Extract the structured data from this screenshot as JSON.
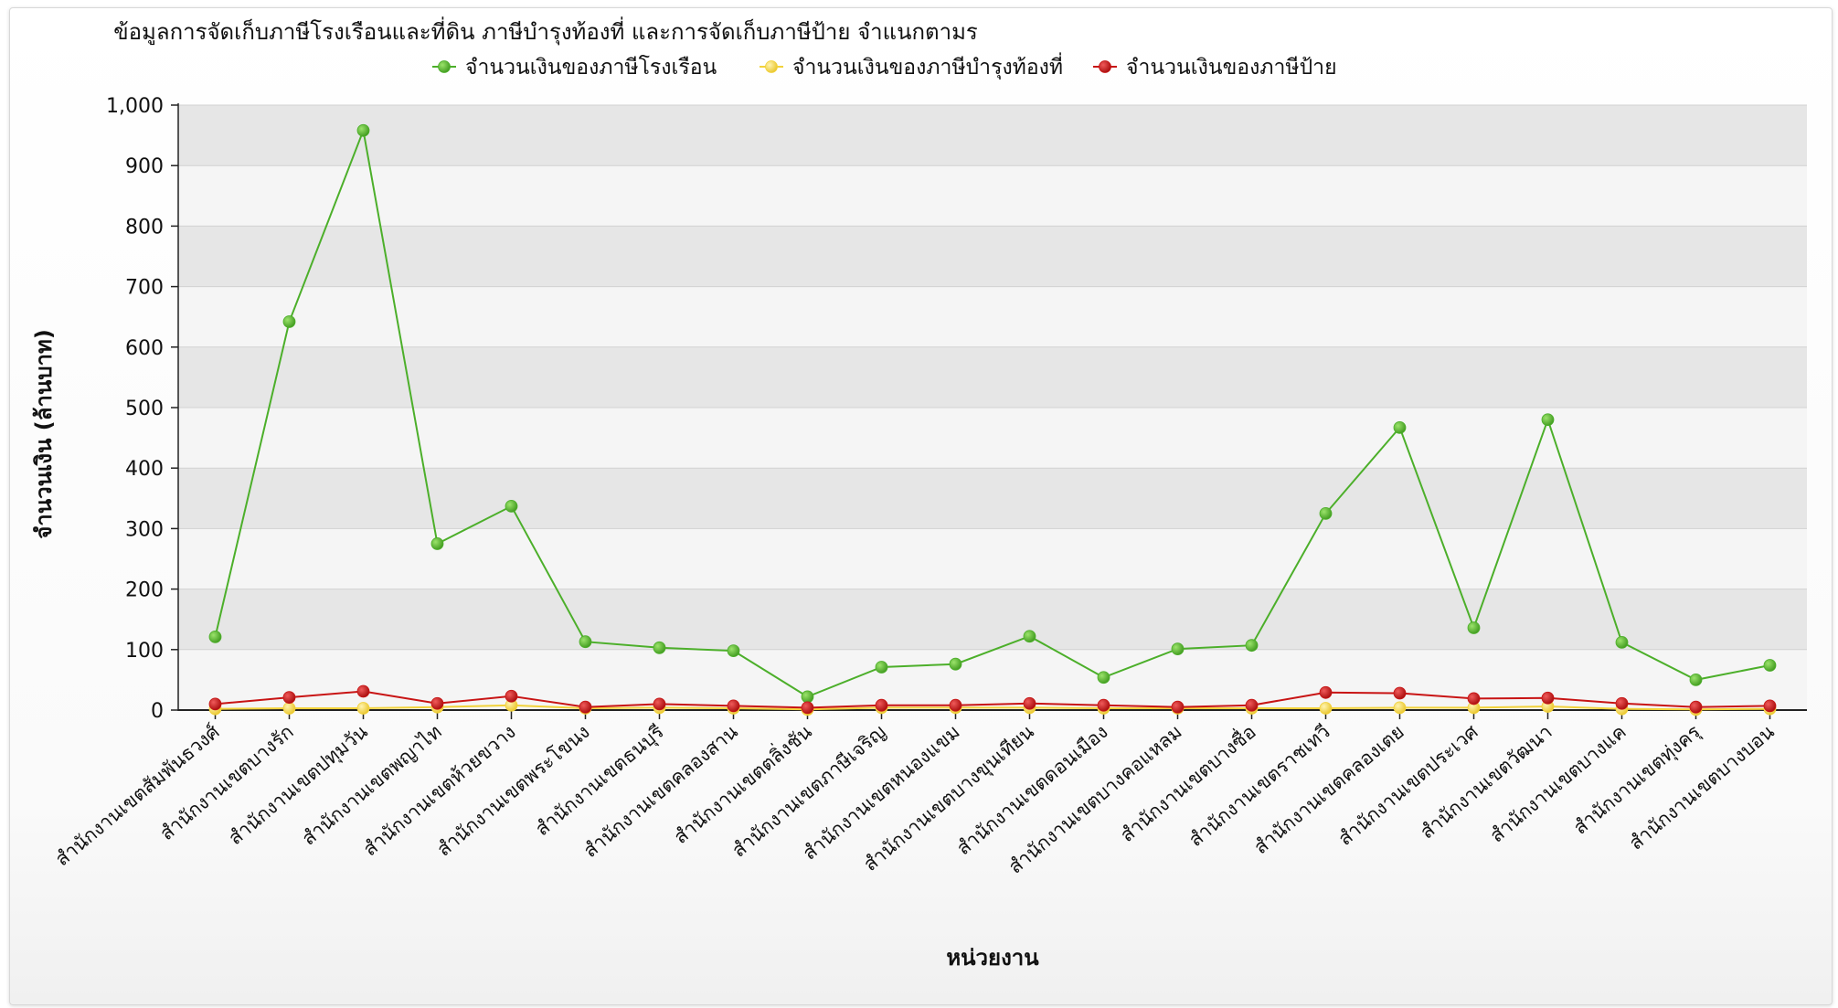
{
  "chart_data": {
    "type": "line",
    "title": "ข้อมูลการจัดเก็บภาษีโรงเรือนและที่ดิน ภาษีบำรุงท้องที่  และการจัดเก็บภาษีป้าย จำแนกตามร",
    "xlabel": "หน่วยงาน",
    "ylabel": "จำนวนเงิน (ล้านบาท)",
    "ylim": [
      0,
      1000
    ],
    "yticks": [
      0,
      100,
      200,
      300,
      400,
      500,
      600,
      700,
      800,
      900,
      1000
    ],
    "ytick_labels": [
      "0",
      "100",
      "200",
      "300",
      "400",
      "500",
      "600",
      "700",
      "800",
      "900",
      "1,000"
    ],
    "grid": true,
    "legend_position": "top-center",
    "categories": [
      "สำนักงานเขตสัมพันธวงศ์",
      "สำนักงานเขตบางรัก",
      "สำนักงานเขตปทุมวัน",
      "สำนักงานเขตพญาไท",
      "สำนักงานเขตห้วยขวาง",
      "สำนักงานเขตพระโขนง",
      "สำนักงานเขตธนบุรี",
      "สำนักงานเขตคลองสาน",
      "สำนักงานเขตตลิ่งชัน",
      "สำนักงานเขตภาษีเจริญ",
      "สำนักงานเขตหนองแขม",
      "สำนักงานเขตบางขุนเทียน",
      "สำนักงานเขตดอนเมือง",
      "สำนักงานเขตบางคอแหลม",
      "สำนักงานเขตบางซื่อ",
      "สำนักงานเขตราชเทวี",
      "สำนักงานเขตคลองเตย",
      "สำนักงานเขตประเวศ",
      "สำนักงานเขตวัฒนา",
      "สำนักงานเขตบางแค",
      "สำนักงานเขตทุ่งครุ",
      "สำนักงานเขตบางบอน"
    ],
    "series": [
      {
        "name": "จำนวนเงินของภาษีโรงเรือน",
        "color": "#4caf2a",
        "values": [
          121,
          642,
          958,
          275,
          337,
          113,
          103,
          98,
          22,
          71,
          76,
          122,
          54,
          101,
          107,
          325,
          467,
          136,
          480,
          112,
          50,
          74
        ]
      },
      {
        "name": "จำนวนเงินของภาษีบำรุงท้องที่",
        "color": "#f2d23a",
        "values": [
          2,
          3,
          3,
          5,
          8,
          3,
          4,
          3,
          1,
          4,
          4,
          4,
          3,
          3,
          3,
          3,
          4,
          4,
          6,
          2,
          1,
          2
        ]
      },
      {
        "name": "จำนวนเงินของภาษีป้าย",
        "color": "#c81414",
        "values": [
          10,
          21,
          31,
          11,
          23,
          5,
          10,
          7,
          4,
          8,
          8,
          11,
          8,
          5,
          8,
          29,
          28,
          19,
          20,
          11,
          5,
          7
        ]
      }
    ]
  }
}
